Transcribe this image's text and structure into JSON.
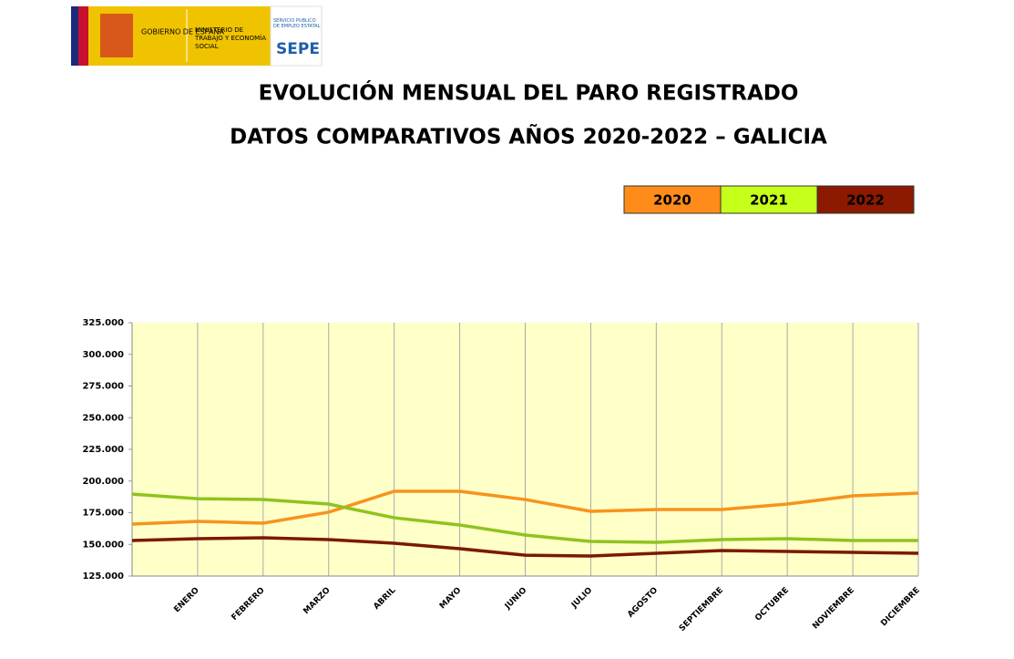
{
  "header": {
    "gov": "GOBIERNO DE ESPAÑA",
    "ministry": "MINISTERIO DE TRABAJO Y ECONOMÍA SOCIAL",
    "service": "SERVICIO PÚBLICO DE EMPLEO ESTATAL",
    "brand": "SEPE"
  },
  "chart_data": {
    "type": "line",
    "title": "EVOLUCIÓN MENSUAL DEL PARO REGISTRADO",
    "subtitle": "DATOS COMPARATIVOS AÑOS 2020-2022 – GALICIA",
    "categories": [
      null,
      "ENERO",
      "FEBRERO",
      "MARZO",
      "ABRIL",
      "MAYO",
      "JUNIO",
      "JULIO",
      "AGOSTO",
      "SEPTIEMBRE",
      "OCTUBRE",
      "NOVIEMBRE",
      "DICIEMBRE"
    ],
    "series": [
      {
        "name": "2020",
        "color": "#f7931e",
        "values": [
          166000,
          168200,
          166700,
          175400,
          191900,
          191900,
          185400,
          176100,
          177500,
          177500,
          181800,
          188300,
          190500
        ]
      },
      {
        "name": "2021",
        "color": "#8fc31f",
        "values": [
          189700,
          186100,
          185400,
          181800,
          171000,
          165300,
          157400,
          152300,
          151600,
          153800,
          154500,
          153100,
          153100
        ]
      },
      {
        "name": "2022",
        "color": "#7a1a00",
        "values": [
          153100,
          154500,
          155200,
          153800,
          150900,
          146600,
          141500,
          140800,
          143000,
          145100,
          144400,
          143700,
          143000
        ]
      }
    ],
    "legend_colors": [
      "#ff8c1a",
      "#c6ff1a",
      "#8b1a00"
    ],
    "ylim": [
      125000,
      325000
    ],
    "yticks": [
      {
        "value": 125000,
        "label": "125.000"
      },
      {
        "value": 150000,
        "label": "150.000"
      },
      {
        "value": 175000,
        "label": "175.000"
      },
      {
        "value": 200000,
        "label": "200.000"
      },
      {
        "value": 225000,
        "label": "225.000"
      },
      {
        "value": 250000,
        "label": "250.000"
      },
      {
        "value": 275000,
        "label": "275.000"
      },
      {
        "value": 300000,
        "label": "300.000"
      },
      {
        "value": 325000,
        "label": "325.000"
      }
    ]
  }
}
